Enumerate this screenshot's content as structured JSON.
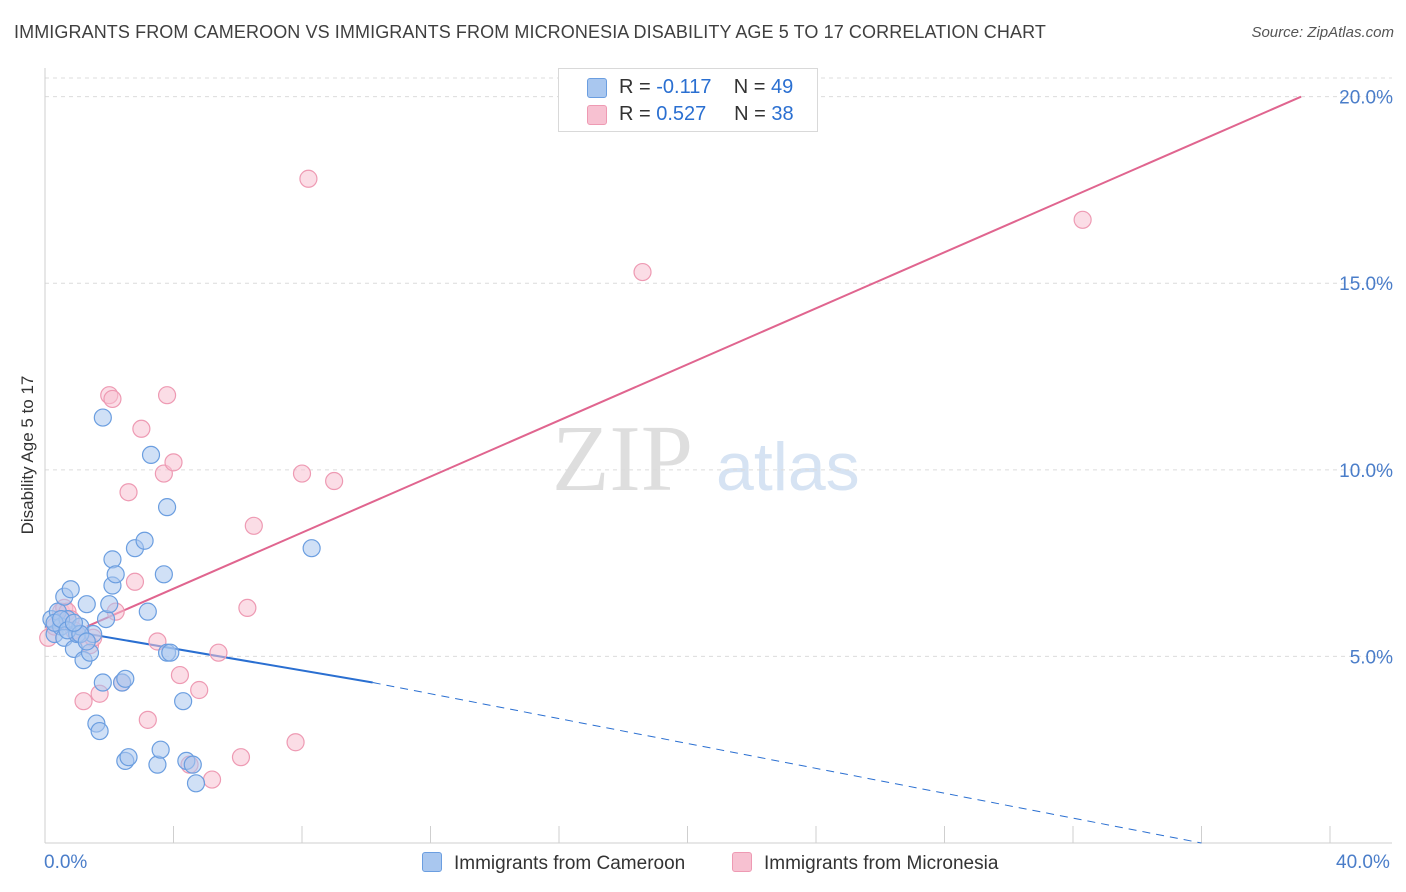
{
  "header": {
    "title": "IMMIGRANTS FROM CAMEROON VS IMMIGRANTS FROM MICRONESIA DISABILITY AGE 5 TO 17 CORRELATION CHART",
    "source": "Source: ZipAtlas.com"
  },
  "watermark": {
    "zip": "ZIP",
    "atlas": "atlas"
  },
  "legend": {
    "r_label": "R =",
    "n_label": "N =",
    "series": [
      {
        "r": "-0.117",
        "n": "49"
      },
      {
        "r": "0.527",
        "n": "38"
      }
    ]
  },
  "bottom_legend": [
    "Immigrants from Cameroon",
    "Immigrants from Micronesia"
  ],
  "colors": {
    "cameroon_fill": "#a9c7ef",
    "cameroon_stroke": "#6b9ee0",
    "cameroon_line": "#2a6fd1",
    "micronesia_fill": "#f7c1d1",
    "micronesia_stroke": "#ee9ab3",
    "micronesia_line": "#e0658f"
  },
  "chart_data": {
    "type": "scatter",
    "title": "IMMIGRANTS FROM CAMEROON VS IMMIGRANTS FROM MICRONESIA DISABILITY AGE 5 TO 17 CORRELATION CHART",
    "xlabel": "",
    "ylabel": "Disability Age 5 to 17",
    "xlim": [
      0,
      40
    ],
    "ylim": [
      0,
      20.5
    ],
    "x_tick_labels": [
      "0.0%",
      "40.0%"
    ],
    "y_ticks": [
      5,
      10,
      15,
      20
    ],
    "y_tick_labels": [
      "5.0%",
      "10.0%",
      "15.0%",
      "20.0%"
    ],
    "grid": true,
    "series": [
      {
        "name": "Immigrants from Cameroon",
        "r": -0.117,
        "n": 49,
        "trend": {
          "x0": 0,
          "y0": 5.8,
          "x1": 10.2,
          "y1": 4.3,
          "dashed_to_x": 36.0,
          "dashed_to_y": 0.0
        },
        "points": [
          [
            0.2,
            6.0
          ],
          [
            0.3,
            5.6
          ],
          [
            0.4,
            6.2
          ],
          [
            0.5,
            5.8
          ],
          [
            0.6,
            5.5
          ],
          [
            0.6,
            6.6
          ],
          [
            0.7,
            6.0
          ],
          [
            0.8,
            6.8
          ],
          [
            0.9,
            5.2
          ],
          [
            1.0,
            5.6
          ],
          [
            1.1,
            5.8
          ],
          [
            1.2,
            4.9
          ],
          [
            1.3,
            6.4
          ],
          [
            1.4,
            5.1
          ],
          [
            1.5,
            5.6
          ],
          [
            1.6,
            3.2
          ],
          [
            1.7,
            3.0
          ],
          [
            1.8,
            11.4
          ],
          [
            1.8,
            4.3
          ],
          [
            1.9,
            6.0
          ],
          [
            2.0,
            6.4
          ],
          [
            2.1,
            6.9
          ],
          [
            2.1,
            7.6
          ],
          [
            2.2,
            7.2
          ],
          [
            2.4,
            4.3
          ],
          [
            2.5,
            4.4
          ],
          [
            2.5,
            2.2
          ],
          [
            2.6,
            2.3
          ],
          [
            2.8,
            7.9
          ],
          [
            3.1,
            8.1
          ],
          [
            3.2,
            6.2
          ],
          [
            3.3,
            10.4
          ],
          [
            3.5,
            2.1
          ],
          [
            3.6,
            2.5
          ],
          [
            3.7,
            7.2
          ],
          [
            3.8,
            9.0
          ],
          [
            3.8,
            5.1
          ],
          [
            3.9,
            5.1
          ],
          [
            4.3,
            3.8
          ],
          [
            4.4,
            2.2
          ],
          [
            4.6,
            2.1
          ],
          [
            4.7,
            1.6
          ],
          [
            8.3,
            7.9
          ],
          [
            0.3,
            5.9
          ],
          [
            0.5,
            6.0
          ],
          [
            0.7,
            5.7
          ],
          [
            1.1,
            5.6
          ],
          [
            1.3,
            5.4
          ],
          [
            0.9,
            5.9
          ]
        ]
      },
      {
        "name": "Immigrants from Micronesia",
        "r": 0.527,
        "n": 38,
        "trend": {
          "x0": 1.3,
          "y0": 5.8,
          "x1": 39.1,
          "y1": 20.0
        },
        "points": [
          [
            0.1,
            5.5
          ],
          [
            0.3,
            5.8
          ],
          [
            0.5,
            6.2
          ],
          [
            0.6,
            6.3
          ],
          [
            0.7,
            6.2
          ],
          [
            0.8,
            6.0
          ],
          [
            0.9,
            5.7
          ],
          [
            1.1,
            5.6
          ],
          [
            1.2,
            3.8
          ],
          [
            1.4,
            5.3
          ],
          [
            1.5,
            5.5
          ],
          [
            1.7,
            4.0
          ],
          [
            2.0,
            12.0
          ],
          [
            2.1,
            11.9
          ],
          [
            2.2,
            6.2
          ],
          [
            2.4,
            4.3
          ],
          [
            2.6,
            9.4
          ],
          [
            2.8,
            7.0
          ],
          [
            3.0,
            11.1
          ],
          [
            3.2,
            3.3
          ],
          [
            3.5,
            5.4
          ],
          [
            3.7,
            9.9
          ],
          [
            3.8,
            12.0
          ],
          [
            4.0,
            10.2
          ],
          [
            4.2,
            4.5
          ],
          [
            4.5,
            2.1
          ],
          [
            4.8,
            4.1
          ],
          [
            5.2,
            1.7
          ],
          [
            5.4,
            5.1
          ],
          [
            6.1,
            2.3
          ],
          [
            6.3,
            6.3
          ],
          [
            6.5,
            8.5
          ],
          [
            7.8,
            2.7
          ],
          [
            8.0,
            9.9
          ],
          [
            8.2,
            17.8
          ],
          [
            9.0,
            9.7
          ],
          [
            18.6,
            15.3
          ],
          [
            32.3,
            16.7
          ]
        ]
      }
    ]
  }
}
